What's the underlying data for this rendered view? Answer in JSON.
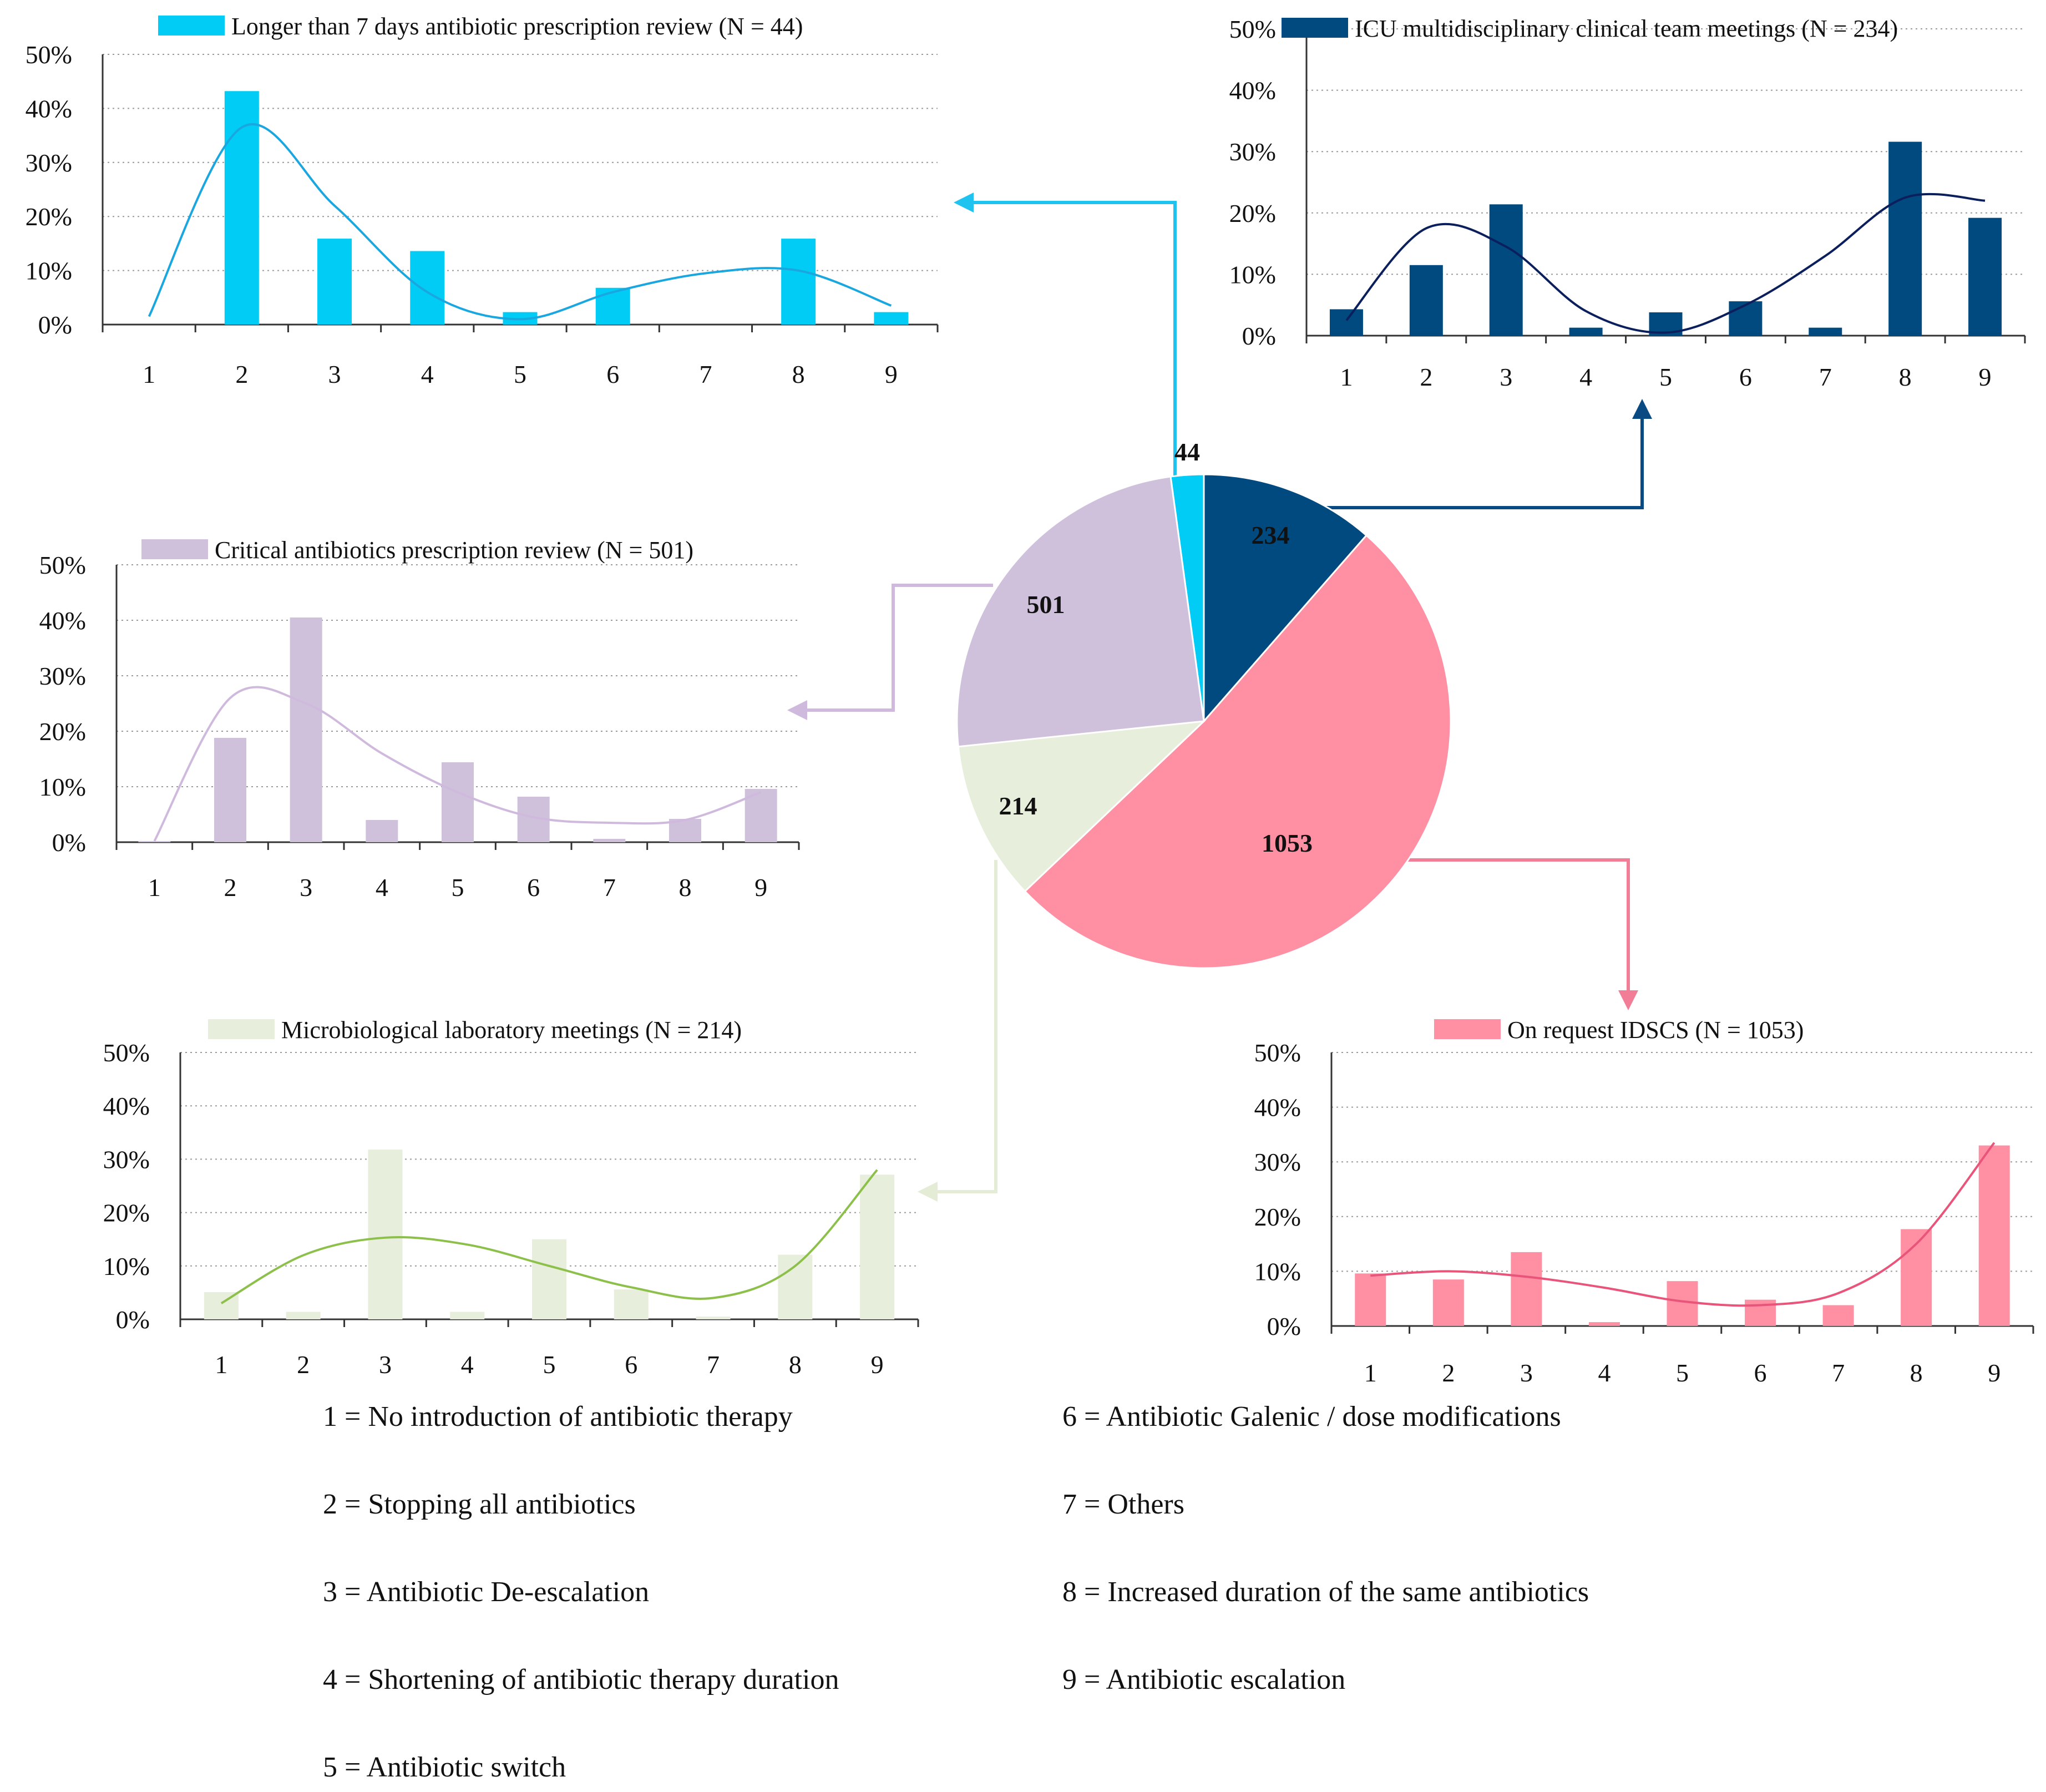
{
  "chart_data": [
    {
      "id": "top-left",
      "type": "bar",
      "title": "Longer than 7 days antibiotic prescription review (N = 44)",
      "categories": [
        "1",
        "2",
        "3",
        "4",
        "5",
        "6",
        "7",
        "8",
        "9"
      ],
      "values": [
        0,
        43.2,
        15.9,
        13.6,
        2.3,
        6.8,
        0,
        15.9,
        2.3
      ],
      "trend": [
        1.5,
        36.5,
        22,
        6,
        1,
        6,
        9.5,
        10,
        3.5
      ],
      "yticks": [
        "0%",
        "10%",
        "20%",
        "30%",
        "40%",
        "50%"
      ],
      "ylim": [
        0,
        50
      ],
      "color": "#00ccf5",
      "trend_color": "#1aa7df"
    },
    {
      "id": "top-right",
      "type": "bar",
      "title": "ICU multidisciplinary clinical team meetings (N = 234)",
      "categories": [
        "1",
        "2",
        "3",
        "4",
        "5",
        "6",
        "7",
        "8",
        "9"
      ],
      "values": [
        4.3,
        11.5,
        21.4,
        1.3,
        3.8,
        5.6,
        1.3,
        31.6,
        19.2
      ],
      "trend": [
        2.5,
        17.5,
        14.5,
        4,
        0.5,
        5,
        13,
        22.5,
        22
      ],
      "yticks": [
        "0%",
        "10%",
        "20%",
        "30%",
        "40%",
        "50%"
      ],
      "ylim": [
        0,
        50
      ],
      "color": "#004a80",
      "trend_color": "#0a1f5c"
    },
    {
      "id": "middle-left",
      "type": "bar",
      "title": "Critical antibiotics prescription review (N = 501)",
      "categories": [
        "1",
        "2",
        "3",
        "4",
        "5",
        "6",
        "7",
        "8",
        "9"
      ],
      "values": [
        0.2,
        18.8,
        40.5,
        4.0,
        14.4,
        8.2,
        0.6,
        4.2,
        9.6
      ],
      "trend": [
        0.2,
        26,
        25,
        16,
        9,
        4.5,
        3.5,
        4,
        9
      ],
      "yticks": [
        "0%",
        "10%",
        "20%",
        "30%",
        "40%",
        "50%"
      ],
      "ylim": [
        0,
        50
      ],
      "color": "#cfc1dc",
      "trend_color": "#cfb9dd"
    },
    {
      "id": "bottom-left",
      "type": "bar",
      "title": "Microbiological laboratory meetings (N = 214)",
      "categories": [
        "1",
        "2",
        "3",
        "4",
        "5",
        "6",
        "7",
        "8",
        "9"
      ],
      "values": [
        5.1,
        1.4,
        31.8,
        1.4,
        15.0,
        5.6,
        0.5,
        12.1,
        27.1
      ],
      "trend": [
        3,
        12,
        15.3,
        14,
        10,
        6,
        4,
        10,
        28
      ],
      "yticks": [
        "0%",
        "10%",
        "20%",
        "30%",
        "40%",
        "50%"
      ],
      "ylim": [
        0,
        50
      ],
      "color": "#e8eedc",
      "trend_color": "#8cc04a"
    },
    {
      "id": "bottom-right",
      "type": "bar",
      "title": "On request IDSCS (N = 1053)",
      "categories": [
        "1",
        "2",
        "3",
        "4",
        "5",
        "6",
        "7",
        "8",
        "9"
      ],
      "values": [
        9.6,
        8.5,
        13.5,
        0.7,
        8.2,
        4.8,
        3.8,
        17.7,
        33.0
      ],
      "trend": [
        9.2,
        10,
        9,
        7,
        4.5,
        3.8,
        6,
        15,
        33.5
      ],
      "yticks": [
        "0%",
        "10%",
        "20%",
        "30%",
        "40%",
        "50%"
      ],
      "ylim": [
        0,
        50
      ],
      "color": "#ff8fa3",
      "trend_color": "#e8547a"
    }
  ],
  "pie": {
    "type": "pie",
    "slices": [
      {
        "label": "44",
        "value": 44,
        "color": "#00ccf5"
      },
      {
        "label": "234",
        "value": 234,
        "color": "#004a80"
      },
      {
        "label": "1053",
        "value": 1053,
        "color": "#ff8fa3"
      },
      {
        "label": "214",
        "value": 214,
        "color": "#e8eedc"
      },
      {
        "label": "501",
        "value": 501,
        "color": "#cfc1dc"
      }
    ]
  },
  "key": [
    "1 = No introduction of antibiotic therapy",
    "2 = Stopping all antibiotics",
    "3 = Antibiotic De-escalation",
    "4 = Shortening of antibiotic therapy duration",
    "5 = Antibiotic switch",
    "6 = Antibiotic Galenic / dose modifications",
    "7 = Others",
    "8 = Increased duration of the same antibiotics",
    "9 = Antibiotic escalation"
  ]
}
